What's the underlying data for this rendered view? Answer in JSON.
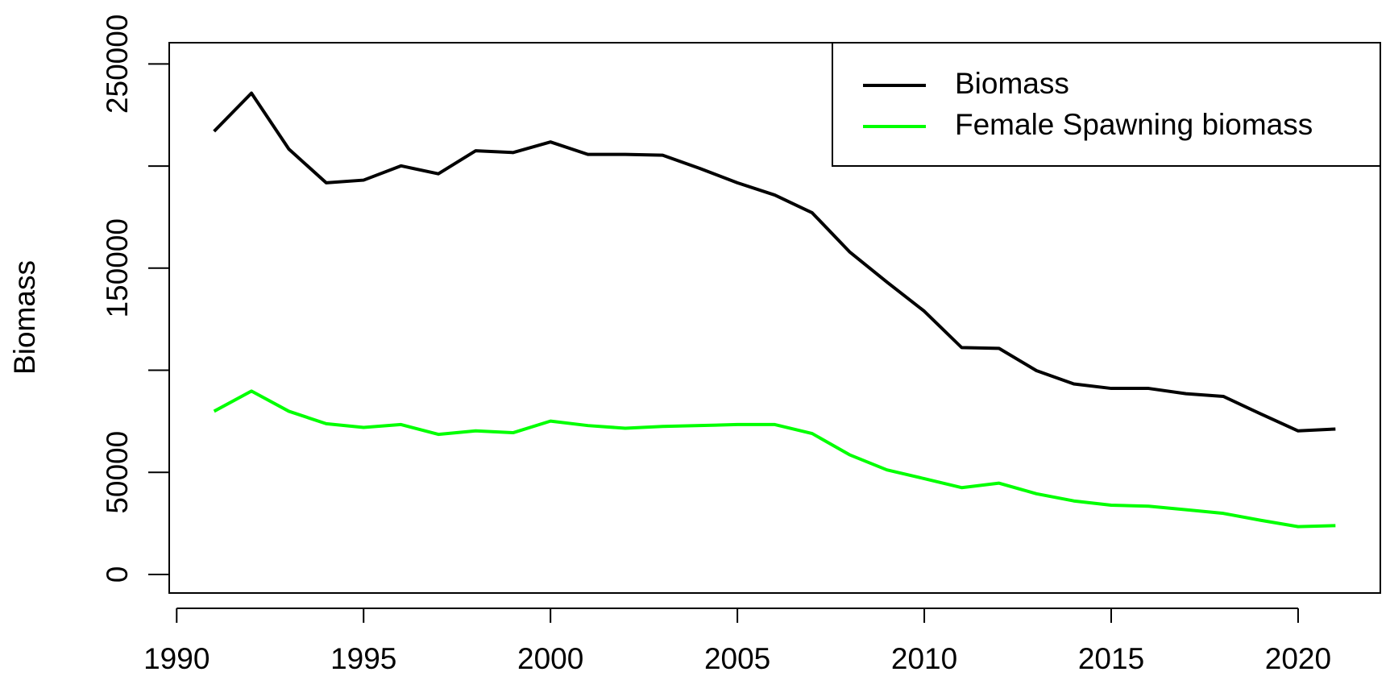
{
  "chart_data": {
    "type": "line",
    "ylabel": "Biomass",
    "x": [
      1991,
      1992,
      1993,
      1994,
      1995,
      1996,
      1997,
      1998,
      1999,
      2000,
      2001,
      2002,
      2003,
      2004,
      2005,
      2006,
      2007,
      2008,
      2009,
      2010,
      2011,
      2012,
      2013,
      2014,
      2015,
      2016,
      2017,
      2018,
      2019,
      2020,
      2021
    ],
    "series": [
      {
        "name": "Biomass",
        "color": "#000000",
        "values": [
          217000,
          235700,
          208300,
          191800,
          193100,
          200100,
          196200,
          207500,
          206600,
          211800,
          205700,
          205700,
          205300,
          198800,
          191800,
          185800,
          177100,
          158000,
          143200,
          128900,
          111100,
          110700,
          99800,
          93300,
          91100,
          91100,
          88500,
          87200,
          78600,
          70300,
          71200
        ]
      },
      {
        "name": "Female Spawning biomass",
        "color": "#00ff00",
        "values": [
          79900,
          89800,
          79900,
          73800,
          72000,
          73400,
          68600,
          70300,
          69400,
          75100,
          72900,
          71600,
          72500,
          72900,
          73400,
          73400,
          69000,
          58600,
          51200,
          46900,
          42500,
          44700,
          39500,
          36000,
          33900,
          33400,
          31700,
          29900,
          26500,
          23400,
          23900
        ]
      }
    ],
    "xlim": [
      1989.8,
      2022.2
    ],
    "xticks": [
      1990,
      1995,
      2000,
      2005,
      2010,
      2015,
      2020
    ],
    "ylim": [
      -9100,
      260400
    ],
    "yticks": [
      0,
      50000,
      {
        "value": 100000,
        "label": null
      },
      150000,
      {
        "value": 200000,
        "label": null
      },
      250000
    ],
    "legend": "top-right"
  }
}
